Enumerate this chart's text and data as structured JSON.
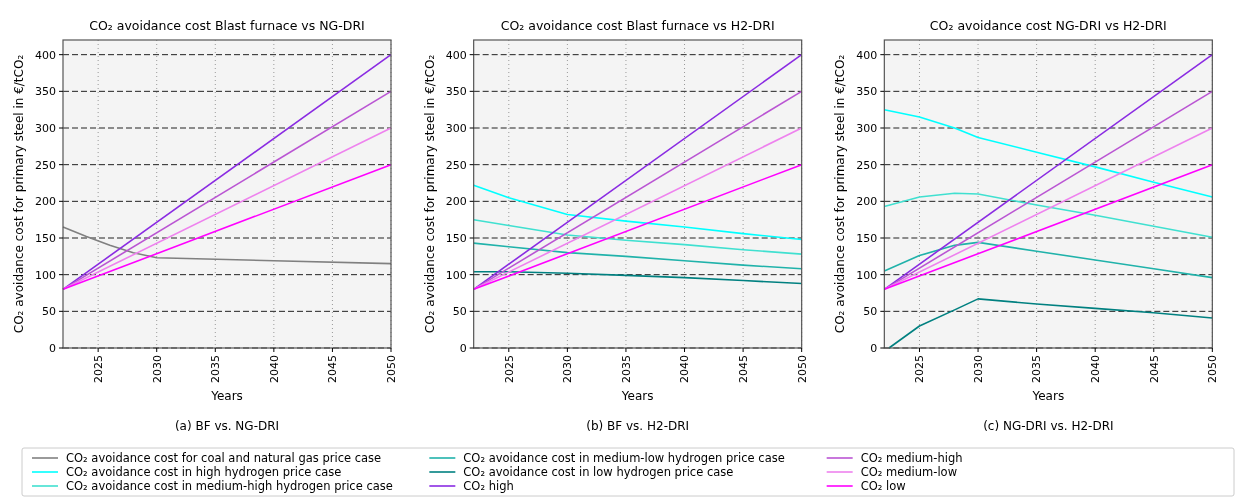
{
  "chart_data": [
    {
      "type": "line",
      "title": "CO₂ avoidance cost Blast furnace vs NG-DRI",
      "xlabel": "Years",
      "ylabel": "CO₂ avoidance cost for primary steel in €/tCO₂",
      "annotations": [
        "(a) BF vs. NG-DRI"
      ],
      "xlim": [
        2022,
        2050
      ],
      "xticks": [
        2025,
        2030,
        2035,
        2040,
        2045,
        2050
      ],
      "ylim": [
        0,
        420
      ],
      "yticks": [
        0,
        50,
        100,
        150,
        200,
        250,
        300,
        350,
        400
      ],
      "grid": true,
      "legend": "bottom",
      "series": [
        {
          "name": "CO₂ avoidance cost for coal and natural gas price case",
          "color": "#808080",
          "x": [
            2022,
            2024,
            2026,
            2028,
            2030,
            2040,
            2050
          ],
          "values": [
            165,
            152,
            140,
            130,
            123,
            119,
            115
          ]
        },
        {
          "color": "#8a2be2",
          "x": [
            2022,
            2050
          ],
          "values": [
            80,
            400
          ]
        },
        {
          "color": "#ba55d3",
          "x": [
            2022,
            2050
          ],
          "values": [
            80,
            350
          ]
        },
        {
          "color": "#ee82ee",
          "x": [
            2022,
            2050
          ],
          "values": [
            80,
            300
          ]
        },
        {
          "color": "#ff00ff",
          "x": [
            2022,
            2050
          ],
          "values": [
            80,
            250
          ]
        }
      ]
    },
    {
      "type": "line",
      "title": "CO₂ avoidance cost Blast furnace vs H2-DRI",
      "xlabel": "Years",
      "ylabel": "CO₂ avoidance cost for primary steel in €/tCO₂",
      "annotations": [
        "(b) BF vs. H2-DRI"
      ],
      "xlim": [
        2022,
        2050
      ],
      "xticks": [
        2025,
        2030,
        2035,
        2040,
        2045,
        2050
      ],
      "ylim": [
        0,
        420
      ],
      "yticks": [
        0,
        50,
        100,
        150,
        200,
        250,
        300,
        350,
        400
      ],
      "grid": true,
      "legend": "bottom",
      "series": [
        {
          "name": "CO₂ avoidance cost in high hydrogen price case",
          "color": "#00ffff",
          "x": [
            2022,
            2025,
            2030,
            2035,
            2040,
            2045,
            2050
          ],
          "values": [
            222,
            205,
            182,
            173,
            165,
            156,
            148
          ]
        },
        {
          "name": "CO₂ avoidance cost in medium-high hydrogen price case",
          "color": "#40e0d0",
          "x": [
            2022,
            2025,
            2030,
            2035,
            2040,
            2045,
            2050
          ],
          "values": [
            175,
            167,
            154,
            147,
            141,
            134,
            128
          ]
        },
        {
          "name": "CO₂ avoidance cost in medium-low hydrogen price case",
          "color": "#20b2aa",
          "x": [
            2022,
            2025,
            2030,
            2035,
            2040,
            2045,
            2050
          ],
          "values": [
            143,
            138,
            130,
            125,
            119,
            113,
            108
          ]
        },
        {
          "name": "CO₂ avoidance cost in low hydrogen price case",
          "color": "#008080",
          "x": [
            2022,
            2025,
            2030,
            2035,
            2040,
            2045,
            2050
          ],
          "values": [
            104,
            104,
            102,
            99,
            96,
            92,
            88
          ]
        },
        {
          "name": "CO₂ high",
          "color": "#8a2be2",
          "x": [
            2022,
            2050
          ],
          "values": [
            80,
            400
          ]
        },
        {
          "name": "CO₂ medium-high",
          "color": "#ba55d3",
          "x": [
            2022,
            2050
          ],
          "values": [
            80,
            350
          ]
        },
        {
          "name": "CO₂ medium-low",
          "color": "#ee82ee",
          "x": [
            2022,
            2050
          ],
          "values": [
            80,
            300
          ]
        },
        {
          "name": "CO₂ low",
          "color": "#ff00ff",
          "x": [
            2022,
            2050
          ],
          "values": [
            80,
            250
          ]
        }
      ]
    },
    {
      "type": "line",
      "title": "CO₂ avoidance cost NG-DRI vs H2-DRI",
      "xlabel": "Years",
      "ylabel": "CO₂ avoidance cost for primary steel in €/tCO₂",
      "annotations": [
        "(c) NG-DRI vs. H2-DRI"
      ],
      "xlim": [
        2022,
        2050
      ],
      "xticks": [
        2025,
        2030,
        2035,
        2040,
        2045,
        2050
      ],
      "ylim": [
        0,
        420
      ],
      "yticks": [
        0,
        50,
        100,
        150,
        200,
        250,
        300,
        350,
        400
      ],
      "grid": true,
      "series": [
        {
          "color": "#00ffff",
          "x": [
            2022,
            2025,
            2028,
            2030,
            2035,
            2040,
            2045,
            2050
          ],
          "values": [
            325,
            315,
            300,
            287,
            267,
            247,
            226,
            206
          ]
        },
        {
          "color": "#40e0d0",
          "x": [
            2022,
            2025,
            2028,
            2030,
            2035,
            2040,
            2045,
            2050
          ],
          "values": [
            193,
            206,
            211,
            210,
            195,
            181,
            166,
            151
          ]
        },
        {
          "color": "#20b2aa",
          "x": [
            2022,
            2025,
            2028,
            2030,
            2035,
            2040,
            2045,
            2050
          ],
          "values": [
            105,
            126,
            140,
            144,
            132,
            120,
            108,
            96
          ]
        },
        {
          "color": "#008080",
          "x": [
            2022.4,
            2025,
            2028,
            2030,
            2035,
            2040,
            2045,
            2050
          ],
          "values": [
            0,
            30,
            52,
            67,
            60,
            54,
            48,
            41
          ]
        },
        {
          "color": "#8a2be2",
          "x": [
            2022,
            2050
          ],
          "values": [
            80,
            400
          ]
        },
        {
          "color": "#ba55d3",
          "x": [
            2022,
            2050
          ],
          "values": [
            80,
            350
          ]
        },
        {
          "color": "#ee82ee",
          "x": [
            2022,
            2050
          ],
          "values": [
            80,
            300
          ]
        },
        {
          "color": "#ff00ff",
          "x": [
            2022,
            2050
          ],
          "values": [
            80,
            250
          ]
        }
      ]
    }
  ]
}
